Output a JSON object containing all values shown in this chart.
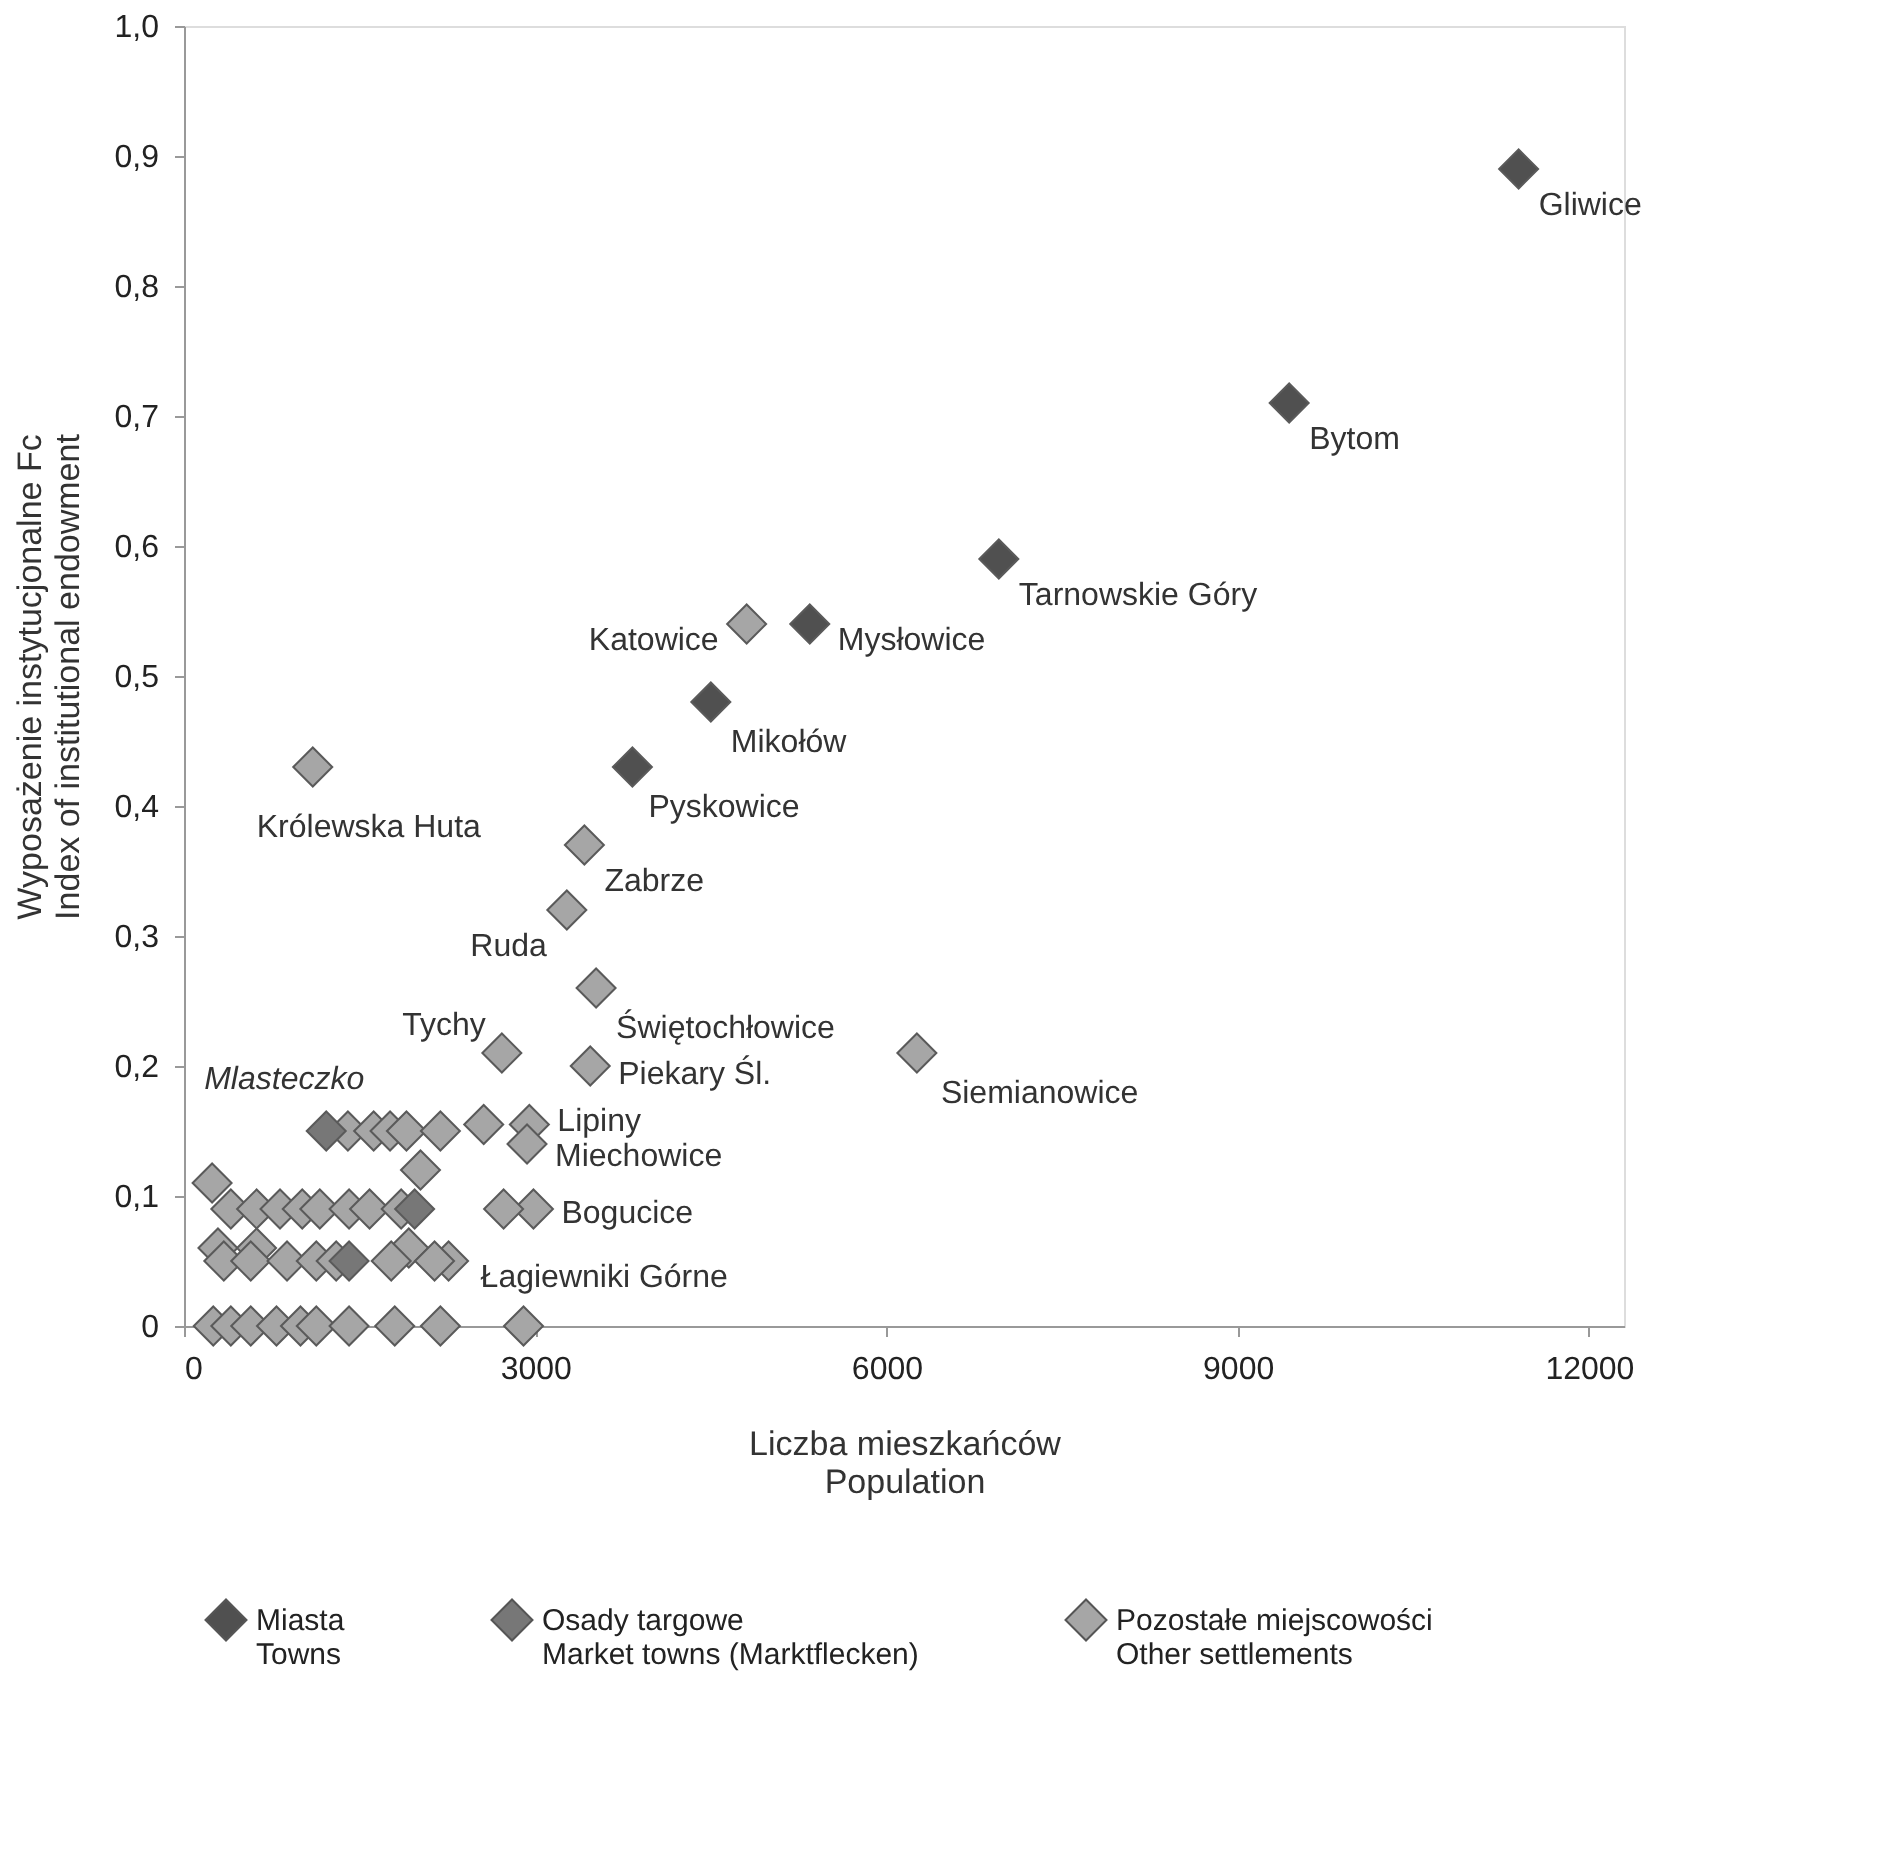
{
  "chart_data": {
    "type": "scatter",
    "xlabel": "Liczba mieszkańców\nPopulation",
    "ylabel": "Wyposażenie instytucjonalne Fc\nIndex of institutional endowment",
    "xlim": [
      0,
      12300
    ],
    "ylim": [
      0,
      1.0
    ],
    "xticks": [
      0,
      3000,
      6000,
      9000,
      12000
    ],
    "yticks": [
      {
        "value": 0,
        "label": "0"
      },
      {
        "value": 0.1,
        "label": "0,1"
      },
      {
        "value": 0.2,
        "label": "0,2"
      },
      {
        "value": 0.3,
        "label": "0,3"
      },
      {
        "value": 0.4,
        "label": "0,4"
      },
      {
        "value": 0.5,
        "label": "0,5"
      },
      {
        "value": 0.6,
        "label": "0,6"
      },
      {
        "value": 0.7,
        "label": "0,7"
      },
      {
        "value": 0.8,
        "label": "0,8"
      },
      {
        "value": 0.9,
        "label": "0,9"
      },
      {
        "value": 1.0,
        "label": "1,0"
      }
    ],
    "marker": "diamond",
    "grid": false,
    "legend": "bottom",
    "series": [
      {
        "name": "Miasta\nTowns",
        "color": "#505050",
        "x": [
          11400,
          9440,
          6960,
          5345,
          4500,
          3830
        ],
        "values": [
          0.89,
          0.71,
          0.59,
          0.54,
          0.48,
          0.43
        ]
      },
      {
        "name": "Osady targowe\nMarket towns (Marktflecken)",
        "color": "#777777",
        "x": [
          1215,
          1970,
          1410
        ],
        "values": [
          0.15,
          0.09,
          0.05
        ]
      },
      {
        "name": "Pozostałe miejscowości\nOther settlements",
        "color": "#a6a6a6",
        "x": [
          4806,
          1100,
          3420,
          3270,
          3520,
          2715,
          3470,
          6260,
          2950,
          2560,
          2930,
          2985,
          2730,
          2260,
          1400,
          1620,
          1760,
          1900,
          2190,
          240,
          2020,
          400,
          620,
          820,
          1010,
          1160,
          1410,
          1585,
          1855,
          290,
          620,
          1920,
          340,
          570,
          880,
          1130,
          1300,
          1770,
          2140,
          250,
          400,
          570,
          790,
          995,
          1130,
          1410,
          1800,
          2190,
          2900
        ],
        "values": [
          0.54,
          0.43,
          0.37,
          0.32,
          0.26,
          0.21,
          0.2,
          0.21,
          0.155,
          0.155,
          0.14,
          0.09,
          0.09,
          0.05,
          0.15,
          0.15,
          0.15,
          0.15,
          0.15,
          0.11,
          0.12,
          0.09,
          0.09,
          0.09,
          0.09,
          0.09,
          0.09,
          0.09,
          0.09,
          0.06,
          0.06,
          0.06,
          0.05,
          0.05,
          0.05,
          0.05,
          0.05,
          0.05,
          0.05,
          0,
          0,
          0,
          0,
          0,
          0,
          0,
          0,
          0,
          0
        ]
      }
    ],
    "annotations": [
      {
        "text": "Gliwice",
        "x": 11400,
        "y": 0.89
      },
      {
        "text": "Bytom",
        "x": 9440,
        "y": 0.71
      },
      {
        "text": "Tarnowskie Góry",
        "x": 6960,
        "y": 0.59
      },
      {
        "text": "Mysłowice",
        "x": 5345,
        "y": 0.54
      },
      {
        "text": "Katowice",
        "x": 4806,
        "y": 0.54
      },
      {
        "text": "Mikołów",
        "x": 4500,
        "y": 0.48
      },
      {
        "text": "Pyskowice",
        "x": 3830,
        "y": 0.43
      },
      {
        "text": "Królewska Huta",
        "x": 1100,
        "y": 0.43
      },
      {
        "text": "Zabrze",
        "x": 3420,
        "y": 0.37
      },
      {
        "text": "Ruda",
        "x": 3270,
        "y": 0.32
      },
      {
        "text": "Świętochłowice",
        "x": 3520,
        "y": 0.26
      },
      {
        "text": "Tychy",
        "x": 2715,
        "y": 0.21
      },
      {
        "text": "Piekary Śl.",
        "x": 3470,
        "y": 0.2
      },
      {
        "text": "Siemianowice",
        "x": 6260,
        "y": 0.21
      },
      {
        "text": "Lipiny",
        "x": 2950,
        "y": 0.155
      },
      {
        "text": "Miechowice",
        "x": 2930,
        "y": 0.14
      },
      {
        "text": "Bogucice",
        "x": 2985,
        "y": 0.09
      },
      {
        "text": "Łagiewniki Górne",
        "x": 2260,
        "y": 0.05
      },
      {
        "text": "Mlasteczko",
        "x": 1215,
        "y": 0.15
      }
    ]
  }
}
